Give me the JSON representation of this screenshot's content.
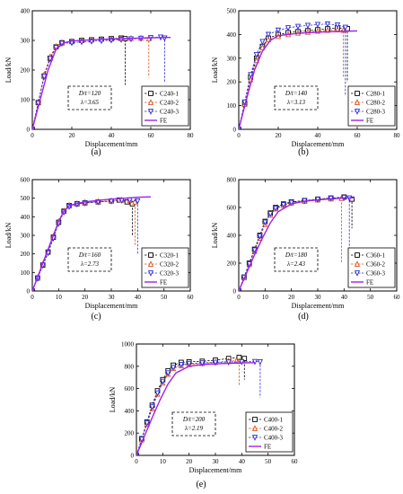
{
  "chart_data": [
    {
      "type": "line",
      "panel_label": "(a)",
      "xlabel": "Displacement/mm",
      "ylabel": "Load/kN",
      "xlim": [
        0,
        80
      ],
      "ylim": [
        0,
        400
      ],
      "xticks": [
        0,
        20,
        40,
        60,
        80
      ],
      "yticks": [
        0,
        100,
        200,
        300,
        400
      ],
      "annotation": [
        "D/t=120",
        "λ=3.65"
      ],
      "legend_position": "bottom-right",
      "series": [
        {
          "name": "C240-1",
          "color": "#000000",
          "marker": "square",
          "x": [
            0,
            3,
            6,
            9,
            12,
            15,
            20,
            25,
            30,
            35,
            40,
            45,
            47,
            47
          ],
          "y": [
            0,
            90,
            180,
            240,
            278,
            292,
            296,
            300,
            302,
            304,
            306,
            308,
            306,
            150
          ]
        },
        {
          "name": "C240-2",
          "color": "#d9531e",
          "marker": "triangle-up",
          "x": [
            0,
            3,
            6,
            9,
            12,
            15,
            20,
            25,
            30,
            35,
            40,
            45,
            50,
            55,
            59,
            59
          ],
          "y": [
            0,
            92,
            185,
            245,
            280,
            293,
            297,
            300,
            302,
            304,
            305,
            306,
            307,
            308,
            306,
            175
          ]
        },
        {
          "name": "C240-3",
          "color": "#2b2bd6",
          "marker": "triangle-down",
          "x": [
            0,
            3,
            6,
            9,
            12,
            15,
            20,
            25,
            30,
            35,
            40,
            45,
            50,
            55,
            60,
            65,
            67,
            67
          ],
          "y": [
            0,
            88,
            178,
            238,
            276,
            290,
            292,
            295,
            297,
            299,
            301,
            303,
            305,
            307,
            309,
            311,
            308,
            160
          ]
        },
        {
          "name": "FE",
          "color": "#a020f0",
          "marker": "none",
          "x": [
            0,
            4,
            8,
            12,
            16,
            20,
            30,
            40,
            50,
            60,
            70
          ],
          "y": [
            0,
            100,
            200,
            270,
            292,
            298,
            302,
            305,
            307,
            309,
            310
          ]
        }
      ]
    },
    {
      "type": "line",
      "panel_label": "(b)",
      "xlabel": "Displacement/mm",
      "ylabel": "Load/kN",
      "xlim": [
        0,
        80
      ],
      "ylim": [
        0,
        500
      ],
      "xticks": [
        0,
        20,
        40,
        60,
        80
      ],
      "yticks": [
        0,
        100,
        200,
        300,
        400,
        500
      ],
      "annotation": [
        "D/t=140",
        "λ=3.13"
      ],
      "legend_position": "bottom-right",
      "series": [
        {
          "name": "C280-1",
          "color": "#000000",
          "marker": "square",
          "x": [
            0,
            3,
            6,
            9,
            12,
            15,
            20,
            25,
            30,
            35,
            40,
            45,
            50,
            55,
            55
          ],
          "y": [
            0,
            110,
            220,
            300,
            350,
            385,
            400,
            408,
            412,
            416,
            420,
            424,
            428,
            425,
            200
          ]
        },
        {
          "name": "C280-2",
          "color": "#d9531e",
          "marker": "triangle-up",
          "x": [
            0,
            3,
            6,
            9,
            12,
            15,
            20,
            25,
            30,
            35,
            40,
            45,
            50,
            53,
            53
          ],
          "y": [
            0,
            105,
            210,
            290,
            345,
            378,
            392,
            400,
            406,
            410,
            414,
            418,
            420,
            418,
            220
          ]
        },
        {
          "name": "C280-3",
          "color": "#2b2bd6",
          "marker": "triangle-down",
          "x": [
            0,
            3,
            6,
            9,
            12,
            15,
            20,
            25,
            30,
            35,
            40,
            45,
            50,
            54,
            54
          ],
          "y": [
            0,
            115,
            230,
            315,
            370,
            400,
            418,
            428,
            434,
            438,
            442,
            444,
            440,
            430,
            140
          ]
        },
        {
          "name": "FE",
          "color": "#a020f0",
          "marker": "none",
          "x": [
            0,
            4,
            8,
            12,
            16,
            20,
            30,
            40,
            50,
            60
          ],
          "y": [
            0,
            130,
            250,
            330,
            375,
            395,
            405,
            410,
            413,
            415
          ]
        }
      ]
    },
    {
      "type": "line",
      "panel_label": "(c)",
      "xlabel": "Displacement/mm",
      "ylabel": "Load/kN",
      "xlim": [
        0,
        60
      ],
      "ylim": [
        0,
        600
      ],
      "xticks": [
        0,
        10,
        20,
        30,
        40,
        50,
        60
      ],
      "yticks": [
        0,
        100,
        200,
        300,
        400,
        500,
        600
      ],
      "annotation": [
        "D/t=160",
        "λ=2.73"
      ],
      "legend_position": "bottom-right",
      "series": [
        {
          "name": "C320-1",
          "color": "#000000",
          "marker": "square",
          "x": [
            0,
            2,
            4,
            6,
            8,
            10,
            12,
            14,
            17,
            20,
            25,
            30,
            33,
            36,
            38,
            38
          ],
          "y": [
            0,
            70,
            140,
            210,
            290,
            370,
            430,
            460,
            470,
            475,
            480,
            485,
            490,
            480,
            470,
            300
          ]
        },
        {
          "name": "C320-2",
          "color": "#d9531e",
          "marker": "triangle-up",
          "x": [
            0,
            2,
            4,
            6,
            8,
            10,
            12,
            14,
            17,
            20,
            25,
            30,
            34,
            37,
            39,
            39
          ],
          "y": [
            0,
            72,
            145,
            215,
            295,
            375,
            432,
            462,
            472,
            478,
            482,
            486,
            490,
            488,
            480,
            240
          ]
        },
        {
          "name": "C320-3",
          "color": "#2b2bd6",
          "marker": "triangle-down",
          "x": [
            0,
            2,
            4,
            6,
            8,
            10,
            12,
            14,
            17,
            20,
            25,
            30,
            34,
            37,
            40,
            40
          ],
          "y": [
            0,
            68,
            138,
            205,
            285,
            365,
            425,
            455,
            468,
            474,
            480,
            484,
            488,
            490,
            485,
            200
          ]
        },
        {
          "name": "FE",
          "color": "#a020f0",
          "marker": "none",
          "x": [
            0,
            2,
            4,
            6,
            8,
            10,
            12,
            14,
            17,
            20,
            25,
            30,
            35,
            40,
            45
          ],
          "y": [
            0,
            75,
            150,
            225,
            300,
            375,
            430,
            460,
            472,
            480,
            488,
            495,
            500,
            505,
            507
          ]
        }
      ]
    },
    {
      "type": "line",
      "panel_label": "(d)",
      "xlabel": "Displacement/mm",
      "ylabel": "Load/kN",
      "xlim": [
        0,
        60
      ],
      "ylim": [
        0,
        800
      ],
      "xticks": [
        0,
        10,
        20,
        30,
        40,
        50,
        60
      ],
      "yticks": [
        0,
        200,
        400,
        600,
        800
      ],
      "annotation": [
        "D/t=180",
        "λ=2.43"
      ],
      "legend_position": "bottom-right",
      "series": [
        {
          "name": "C360-1",
          "color": "#000000",
          "marker": "square",
          "x": [
            0,
            2,
            4,
            6,
            8,
            10,
            12,
            14,
            17,
            20,
            25,
            30,
            35,
            40,
            43,
            43
          ],
          "y": [
            0,
            100,
            200,
            300,
            400,
            500,
            560,
            600,
            625,
            640,
            650,
            660,
            668,
            675,
            660,
            450
          ]
        },
        {
          "name": "C360-2",
          "color": "#d9531e",
          "marker": "triangle-up",
          "x": [
            0,
            2,
            4,
            6,
            8,
            10,
            12,
            14,
            17,
            20,
            25,
            30,
            35,
            39,
            39
          ],
          "y": [
            0,
            95,
            190,
            285,
            380,
            480,
            545,
            590,
            615,
            632,
            645,
            655,
            662,
            665,
            200
          ]
        },
        {
          "name": "C360-3",
          "color": "#2b2bd6",
          "marker": "triangle-down",
          "x": [
            0,
            2,
            4,
            6,
            8,
            10,
            12,
            14,
            17,
            20,
            25,
            30,
            35,
            40,
            42,
            42
          ],
          "y": [
            0,
            98,
            195,
            295,
            395,
            495,
            555,
            595,
            620,
            636,
            648,
            658,
            666,
            672,
            668,
            120
          ]
        },
        {
          "name": "FE",
          "color": "#a020f0",
          "marker": "none",
          "x": [
            0,
            3,
            6,
            9,
            12,
            15,
            20,
            25,
            30,
            35,
            40,
            44
          ],
          "y": [
            0,
            130,
            260,
            380,
            490,
            570,
            625,
            645,
            655,
            662,
            668,
            670
          ]
        }
      ]
    },
    {
      "type": "line",
      "panel_label": "(e)",
      "xlabel": "Displacement/mm",
      "ylabel": "Load/kN",
      "xlim": [
        0,
        60
      ],
      "ylim": [
        0,
        1000
      ],
      "xticks": [
        0,
        10,
        20,
        30,
        40,
        50,
        60
      ],
      "yticks": [
        0,
        200,
        400,
        600,
        800,
        1000
      ],
      "annotation": [
        "D/t=200",
        "λ=2.19"
      ],
      "legend_position": "bottom-right",
      "series": [
        {
          "name": "C400-1",
          "color": "#000000",
          "marker": "square",
          "x": [
            0,
            2,
            4,
            6,
            8,
            10,
            12,
            14,
            17,
            20,
            25,
            30,
            35,
            39,
            41,
            41
          ],
          "y": [
            0,
            150,
            300,
            450,
            580,
            680,
            760,
            810,
            835,
            840,
            845,
            855,
            870,
            880,
            870,
            680
          ]
        },
        {
          "name": "C400-2",
          "color": "#d9531e",
          "marker": "triangle-up",
          "x": [
            0,
            2,
            4,
            6,
            8,
            10,
            12,
            14,
            17,
            20,
            25,
            30,
            35,
            38,
            39,
            39
          ],
          "y": [
            0,
            140,
            280,
            420,
            550,
            650,
            730,
            780,
            805,
            815,
            825,
            835,
            845,
            850,
            845,
            620
          ]
        },
        {
          "name": "C400-3",
          "color": "#2b2bd6",
          "marker": "triangle-down",
          "x": [
            0,
            2,
            4,
            6,
            8,
            10,
            12,
            14,
            17,
            20,
            25,
            30,
            35,
            40,
            45,
            47,
            47
          ],
          "y": [
            0,
            145,
            290,
            435,
            560,
            665,
            740,
            790,
            815,
            825,
            830,
            835,
            838,
            840,
            842,
            840,
            520
          ]
        },
        {
          "name": "FE",
          "color": "#a020f0",
          "marker": "none",
          "x": [
            0,
            3,
            6,
            9,
            12,
            15,
            20,
            25,
            30,
            35,
            40,
            45
          ],
          "y": [
            0,
            170,
            340,
            500,
            640,
            740,
            800,
            815,
            822,
            826,
            830,
            832
          ]
        }
      ]
    }
  ]
}
